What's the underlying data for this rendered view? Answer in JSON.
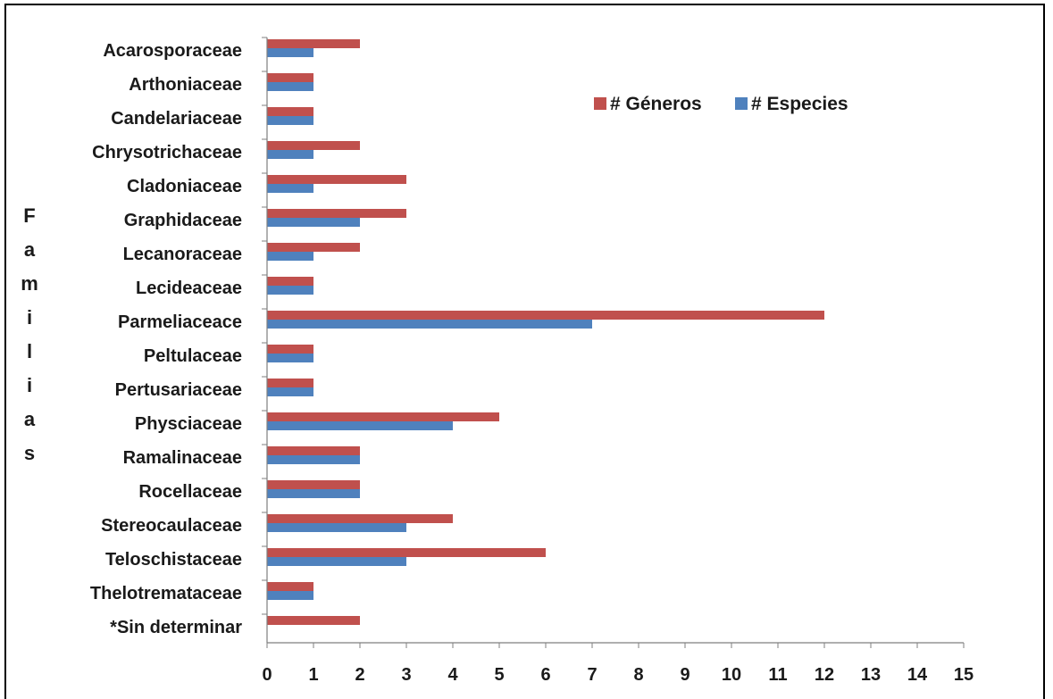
{
  "chart_data": {
    "type": "bar",
    "orientation": "horizontal",
    "ylabel": "Familias",
    "xlabel": "",
    "title": "",
    "xlim": [
      0,
      15
    ],
    "xticks": [
      "0",
      "1",
      "2",
      "3",
      "4",
      "5",
      "6",
      "7",
      "8",
      "9",
      "10",
      "11",
      "12",
      "13",
      "14",
      "15"
    ],
    "grid": false,
    "legend_position": "top-right",
    "categories": [
      "Acarosporaceae",
      "Arthoniaceae",
      "Candelariaceae",
      "Chrysotrichaceae",
      "Cladoniaceae",
      "Graphidaceae",
      "Lecanoraceae",
      "Lecideaceae",
      "Parmeliaceace",
      "Peltulaceae",
      "Pertusariaceae",
      "Physciaceae",
      "Ramalinaceae",
      "Rocellaceae",
      "Stereocaulaceae",
      "Teloschistaceae",
      "Thelotremataceae",
      "*Sin determinar"
    ],
    "series": [
      {
        "name": "# Géneros",
        "color": "#c0504d",
        "values": [
          2,
          1,
          1,
          2,
          3,
          3,
          2,
          1,
          12,
          1,
          1,
          5,
          2,
          2,
          4,
          6,
          1,
          2
        ]
      },
      {
        "name": "# Especies",
        "color": "#4f81bd",
        "values": [
          1,
          1,
          1,
          1,
          1,
          2,
          1,
          1,
          7,
          1,
          1,
          4,
          2,
          2,
          3,
          3,
          1,
          0
        ]
      }
    ]
  }
}
